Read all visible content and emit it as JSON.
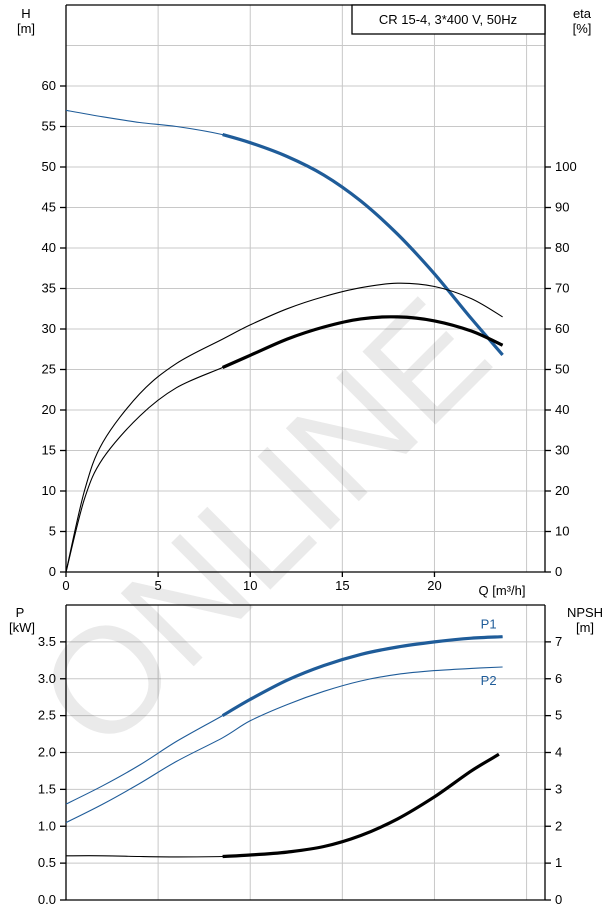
{
  "watermark": "ONLINE",
  "chart_data": [
    {
      "type": "line",
      "title": "CR 15-4, 3*400 V, 50Hz",
      "xlabel": "Q [m³/h]",
      "ylabel": "H\n[m]",
      "y2label": "eta\n[%]",
      "xlim": [
        0,
        26
      ],
      "ylim": [
        0,
        70
      ],
      "y2lim": [
        0,
        140
      ],
      "x_ticks": [
        0,
        5,
        10,
        15,
        20
      ],
      "y_ticks": [
        0,
        5,
        10,
        15,
        20,
        25,
        30,
        35,
        40,
        45,
        50,
        55,
        60
      ],
      "y2_ticks": [
        0,
        10,
        20,
        30,
        40,
        50,
        60,
        70,
        80,
        90,
        100
      ],
      "grid": true,
      "series": [
        {
          "axis": "left",
          "color": "#1f5c99",
          "x": [
            0,
            2,
            4,
            6,
            8.5,
            10,
            12,
            14,
            16,
            18,
            20,
            22,
            23.7
          ],
          "y": [
            57,
            56.2,
            55.5,
            55,
            54.0,
            53.0,
            51.3,
            49.0,
            45.8,
            41.7,
            36.8,
            31.3,
            26.8
          ],
          "duty_range": [
            8.5,
            23.7
          ]
        },
        {
          "axis": "right",
          "color": "#000000",
          "x": [
            0,
            1,
            2,
            4,
            6,
            8.5,
            10,
            12,
            14,
            16,
            18,
            20,
            22,
            23.7
          ],
          "y": [
            0,
            20,
            32,
            44,
            51.5,
            57.5,
            61,
            65,
            68,
            70.2,
            71.3,
            70.5,
            67.5,
            63
          ],
          "duty_range": null
        },
        {
          "axis": "right",
          "color": "#000000",
          "x": [
            0,
            1,
            2,
            4,
            6,
            8.5,
            10,
            12,
            14,
            16,
            18,
            20,
            22,
            23.7
          ],
          "y": [
            0,
            18,
            28,
            38.5,
            45.5,
            50.5,
            53.5,
            57.5,
            60.5,
            62.5,
            63,
            62,
            59.5,
            56
          ],
          "duty_range": [
            8.5,
            23.7
          ]
        }
      ]
    },
    {
      "type": "line",
      "ylabel": "P\n[kW]",
      "y2label": "NPSH\n[m]",
      "xlim": [
        0,
        26
      ],
      "ylim": [
        0,
        4
      ],
      "y2lim": [
        0,
        8
      ],
      "y_ticks": [
        "0.0",
        "0.5",
        "1.0",
        "1.5",
        "2.0",
        "2.5",
        "3.0",
        "3.5"
      ],
      "y2_ticks": [
        0,
        1,
        2,
        3,
        4,
        5,
        6,
        7
      ],
      "grid": true,
      "series": [
        {
          "name": "P1",
          "axis": "left",
          "color": "#1f5c99",
          "x": [
            0,
            2,
            4,
            6,
            8.5,
            10,
            12,
            14,
            16,
            18,
            20,
            22,
            23.7
          ],
          "y": [
            1.3,
            1.55,
            1.83,
            2.15,
            2.5,
            2.72,
            2.98,
            3.18,
            3.33,
            3.43,
            3.5,
            3.55,
            3.57
          ],
          "duty_range": [
            8.5,
            23.7
          ]
        },
        {
          "name": "P2",
          "axis": "left",
          "color": "#1f5c99",
          "x": [
            0,
            2,
            4,
            6,
            8.5,
            10,
            12,
            14,
            16,
            18,
            20,
            22,
            23.7
          ],
          "y": [
            1.05,
            1.3,
            1.58,
            1.88,
            2.2,
            2.43,
            2.65,
            2.83,
            2.97,
            3.06,
            3.11,
            3.14,
            3.16
          ],
          "duty_range": null
        },
        {
          "name": "",
          "axis": "right",
          "color": "#000000",
          "x": [
            0,
            2,
            4,
            6,
            8.5,
            10,
            12,
            14,
            16,
            18,
            20,
            22,
            23.5
          ],
          "y": [
            1.2,
            1.2,
            1.18,
            1.17,
            1.18,
            1.22,
            1.3,
            1.45,
            1.75,
            2.2,
            2.8,
            3.5,
            3.95
          ],
          "duty_range": [
            8.5,
            23.5
          ]
        }
      ]
    }
  ]
}
